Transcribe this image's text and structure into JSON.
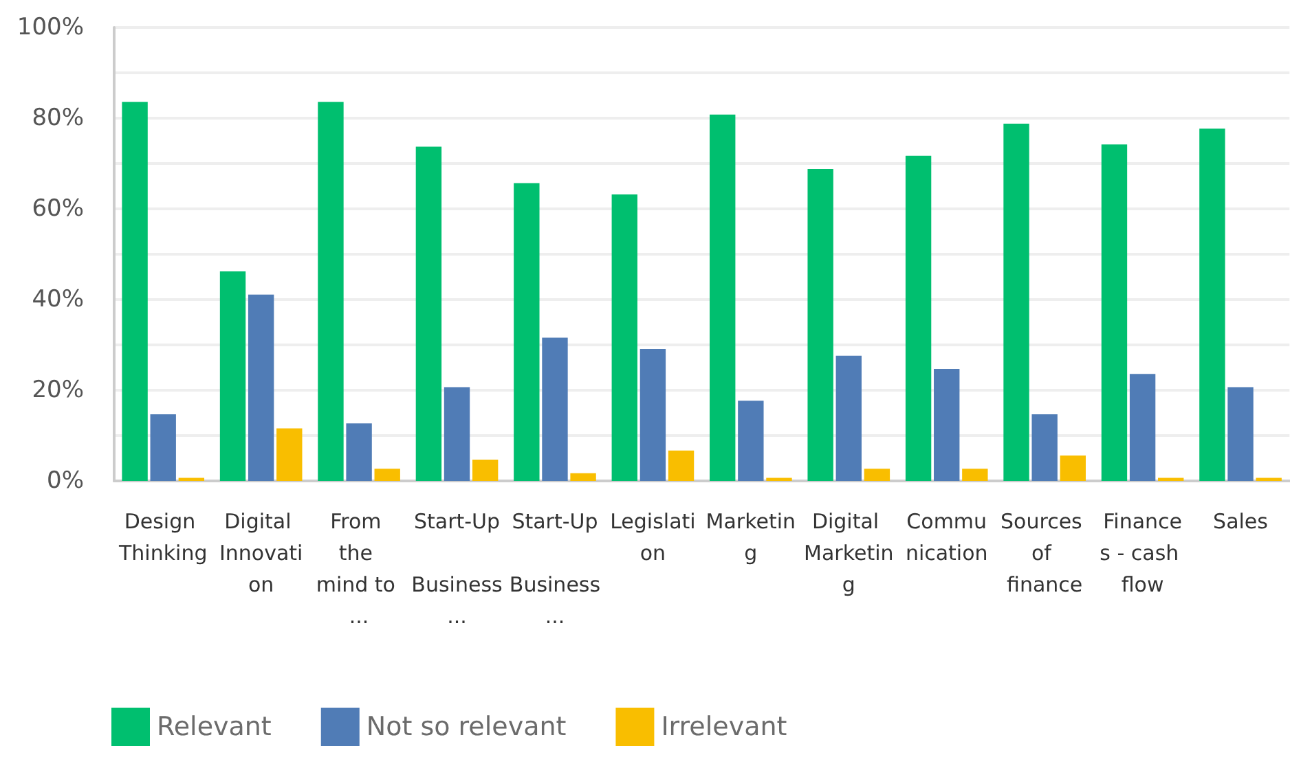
{
  "chart_data": {
    "type": "bar",
    "categories": [
      "Design Thinking",
      "Digital Innovation",
      "From the mind to ...",
      "Start-Up Business...",
      "Start-Up Business...",
      "Legislation",
      "Marketing",
      "Digital Marketing",
      "Communication",
      "Sources of finance",
      "Finances - cash flow",
      "Sales"
    ],
    "series": [
      {
        "name": "Relevant",
        "color": "#00bf6f",
        "values": [
          83.6,
          46.2,
          83.6,
          73.7,
          65.7,
          63.2,
          80.8,
          68.8,
          71.7,
          78.8,
          74.2,
          77.7
        ]
      },
      {
        "name": "Not so relevant",
        "color": "#507cb6",
        "values": [
          14.7,
          41.1,
          12.7,
          20.7,
          31.6,
          29.1,
          17.7,
          27.6,
          24.7,
          14.7,
          23.6,
          20.7
        ]
      },
      {
        "name": "Irrelevant",
        "color": "#f9be00",
        "values": [
          0.7,
          11.6,
          2.7,
          4.7,
          1.7,
          6.7,
          0.7,
          2.7,
          2.7,
          5.6,
          0.7,
          0.7
        ]
      }
    ],
    "ylim": [
      0,
      100
    ],
    "yticks": [
      {
        "value": 0,
        "label": "0%"
      },
      {
        "value": 10,
        "label": null
      },
      {
        "value": 20,
        "label": "20%"
      },
      {
        "value": 30,
        "label": null
      },
      {
        "value": 40,
        "label": "40%"
      },
      {
        "value": 50,
        "label": null
      },
      {
        "value": 60,
        "label": "60%"
      },
      {
        "value": 70,
        "label": null
      },
      {
        "value": 80,
        "label": "80%"
      },
      {
        "value": 90,
        "label": null
      },
      {
        "value": 100,
        "label": "100%"
      }
    ],
    "grid": "y",
    "legend": "bottom left"
  }
}
